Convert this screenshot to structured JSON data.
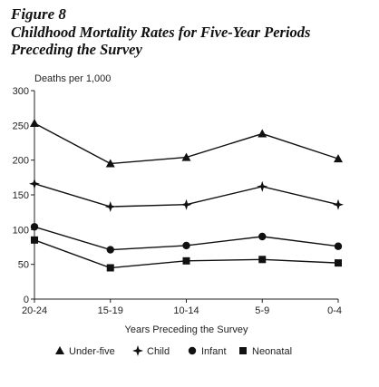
{
  "figure_label": "Figure 8",
  "figure_title": "Childhood Mortality Rates for Five-Year Periods Preceding the Survey",
  "chart_data": {
    "type": "line",
    "ylabel": "Deaths per 1,000",
    "xlabel": "Years Preceding the Survey",
    "ylim": [
      0,
      300
    ],
    "yticks": [
      "0",
      "50",
      "100",
      "150",
      "200",
      "250",
      "300"
    ],
    "categories": [
      "20-24",
      "15-19",
      "10-14",
      "5-9",
      "0-4"
    ],
    "grid": false,
    "legend_position": "bottom",
    "series": [
      {
        "name": "Under-five",
        "marker": "triangle",
        "values": [
          253,
          195,
          204,
          238,
          202
        ]
      },
      {
        "name": "Child",
        "marker": "star",
        "values": [
          166,
          133,
          136,
          162,
          136
        ]
      },
      {
        "name": "Infant",
        "marker": "circle",
        "values": [
          104,
          71,
          77,
          90,
          76
        ]
      },
      {
        "name": "Neonatal",
        "marker": "square",
        "values": [
          85,
          45,
          55,
          57,
          52
        ]
      }
    ]
  }
}
